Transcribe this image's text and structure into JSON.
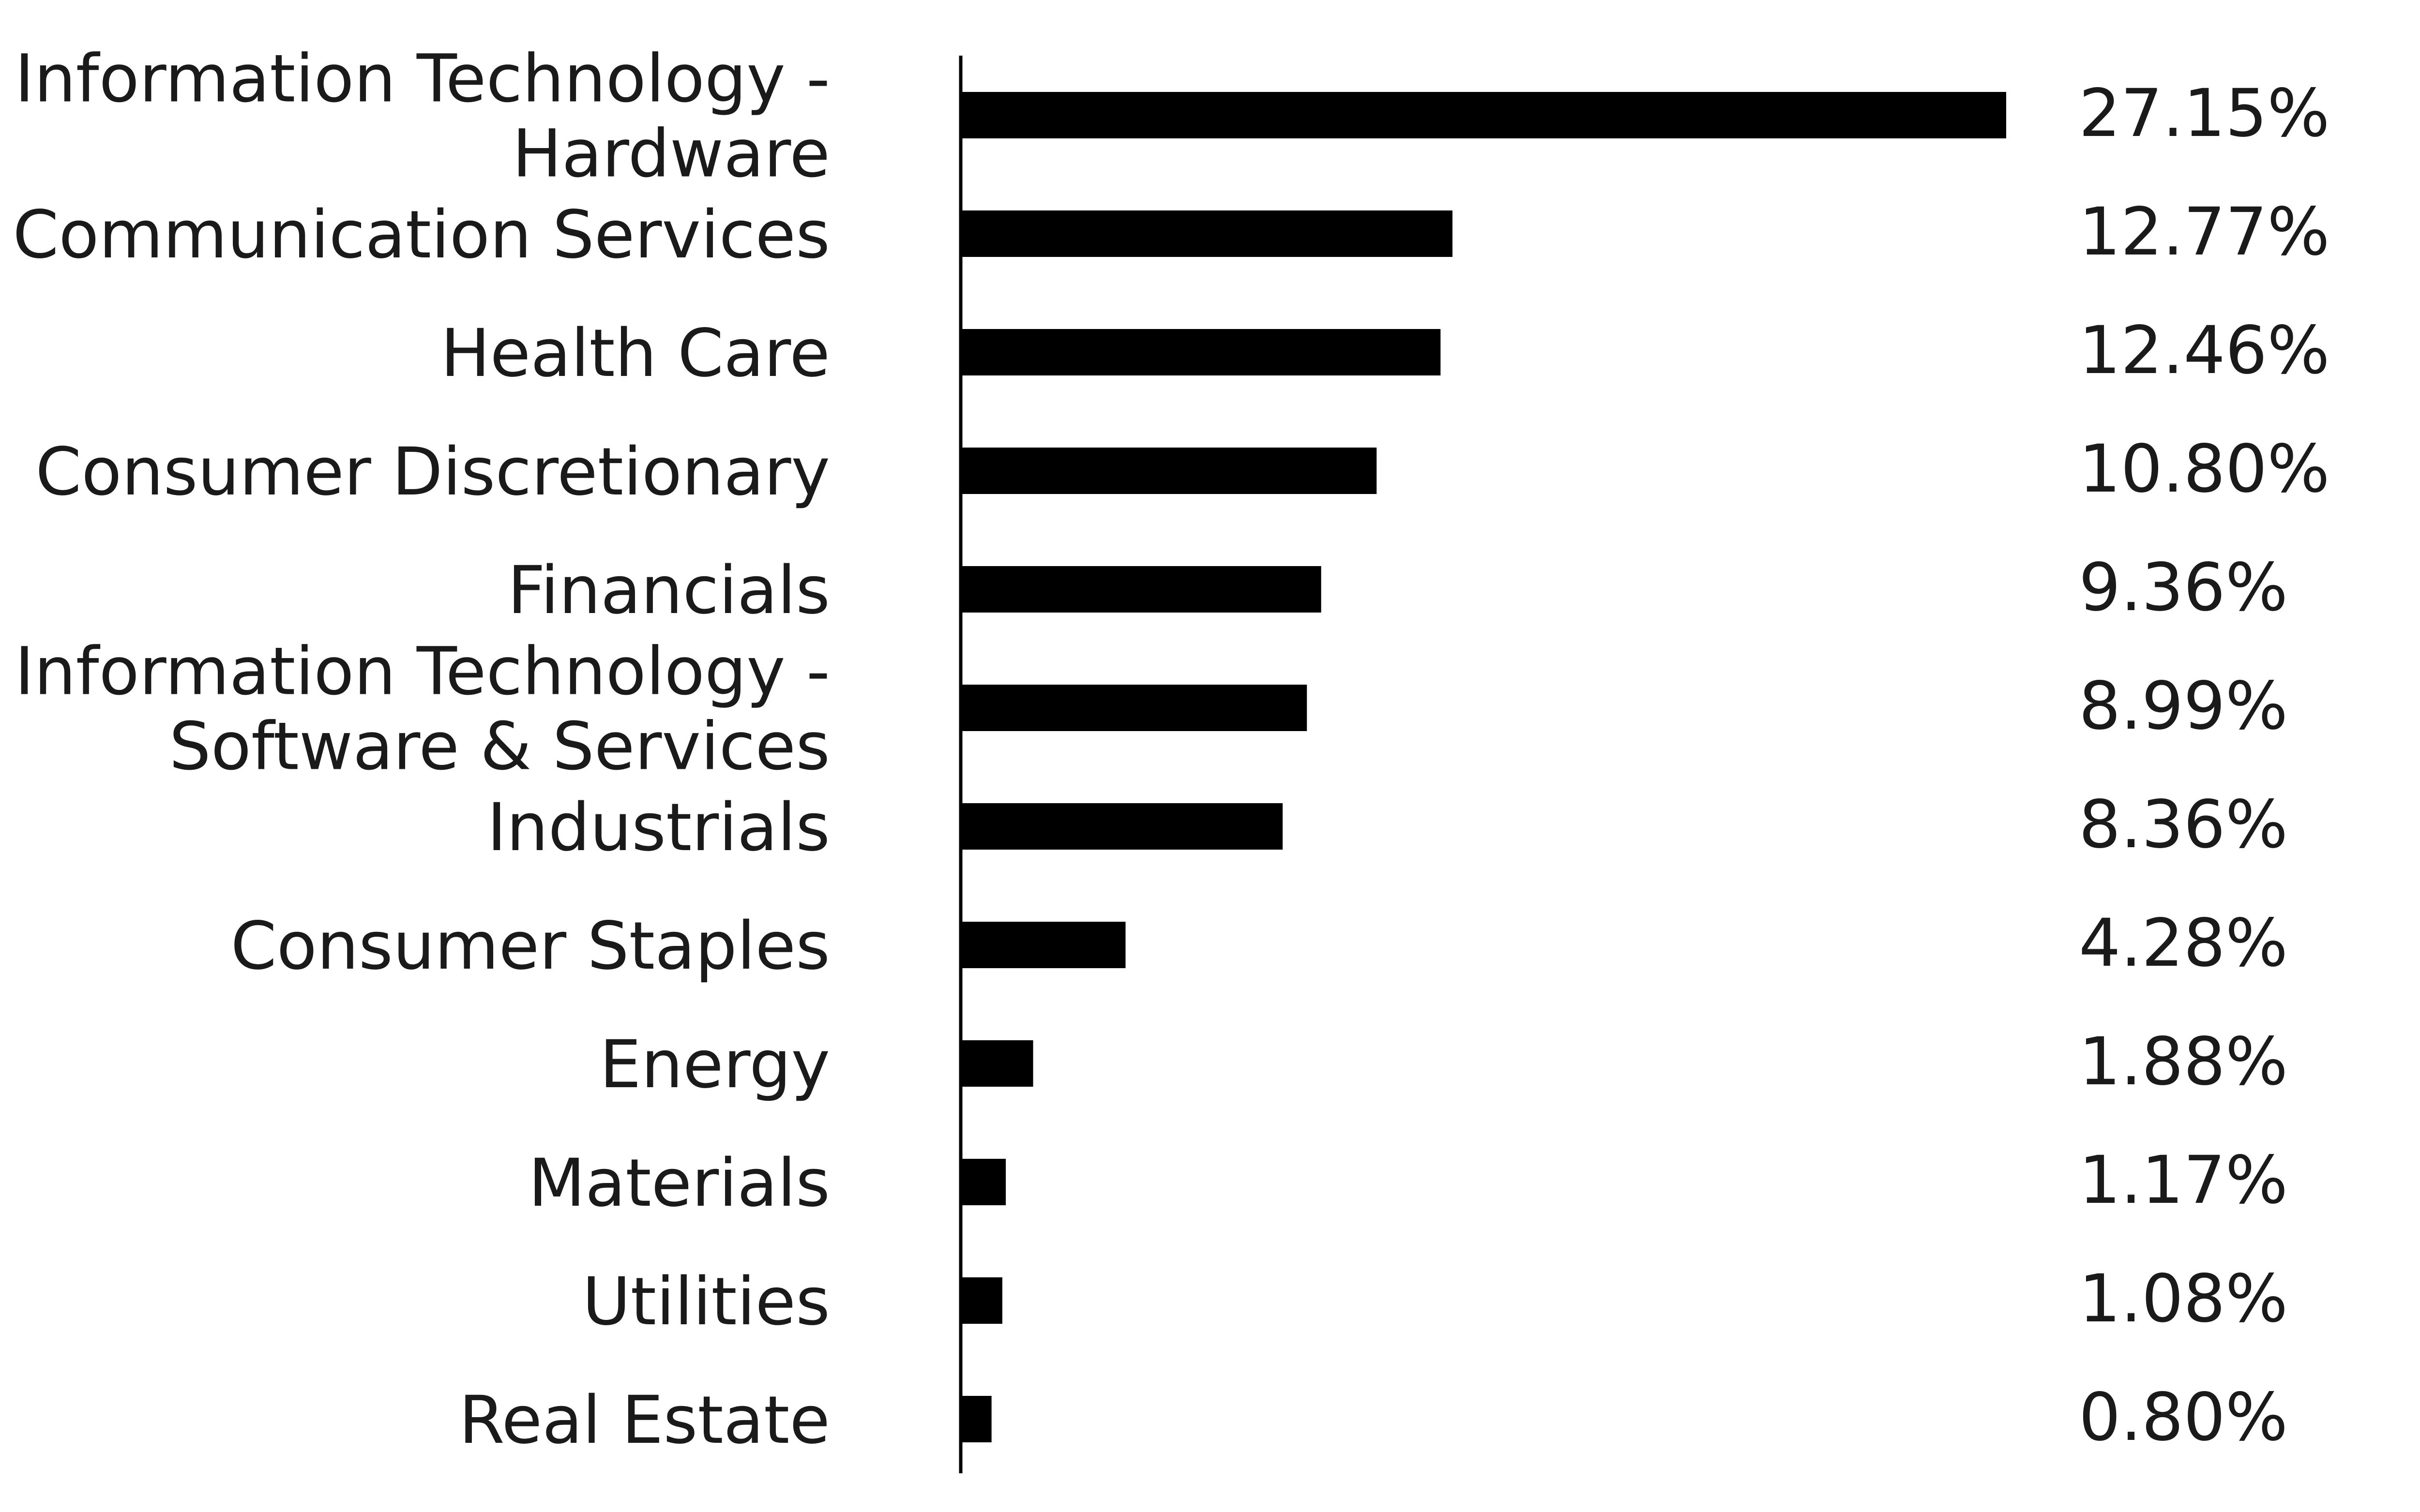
{
  "chart_data": {
    "type": "bar",
    "orientation": "horizontal",
    "categories": [
      [
        "Information Technology -",
        "Hardware"
      ],
      [
        "Communication Services"
      ],
      [
        "Health Care"
      ],
      [
        "Consumer Discretionary"
      ],
      [
        "Financials"
      ],
      [
        "Information Technology -",
        "Software & Services"
      ],
      [
        "Industrials"
      ],
      [
        "Consumer Staples"
      ],
      [
        "Energy"
      ],
      [
        "Materials"
      ],
      [
        "Utilities"
      ],
      [
        "Real Estate"
      ]
    ],
    "values": [
      27.15,
      12.77,
      12.46,
      10.8,
      9.36,
      8.99,
      8.36,
      4.28,
      1.88,
      1.17,
      1.08,
      0.8
    ],
    "value_labels": [
      "27.15%",
      "12.77%",
      "12.46%",
      "10.80%",
      "9.36%",
      "8.99%",
      "8.36%",
      "4.28%",
      "1.88%",
      "1.17%",
      "1.08%",
      "0.80%"
    ],
    "title": "",
    "xlabel": "",
    "ylabel": "",
    "xlim": [
      0,
      27.15
    ],
    "grid": false,
    "legend": "none",
    "bar_color": "#000000",
    "text_color": "#1a1a1a",
    "axis_color": "#000000"
  }
}
